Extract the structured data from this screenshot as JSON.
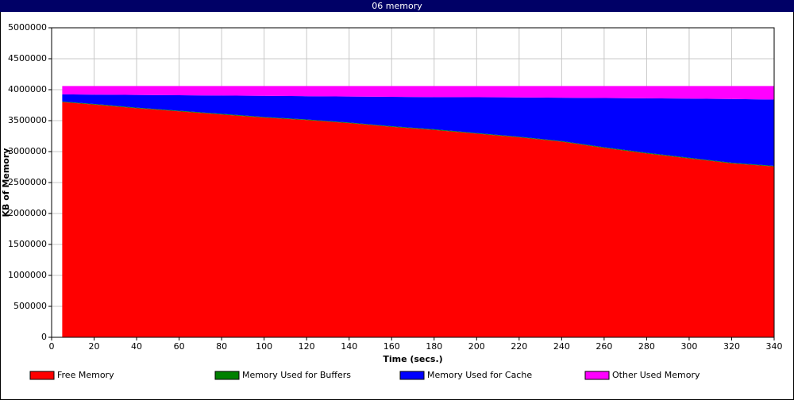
{
  "chart_data": {
    "type": "stacked_area",
    "title": "06 memory",
    "x_label": "Time (secs.)",
    "y_label": "KB of Memory",
    "x": [
      5,
      20,
      40,
      60,
      80,
      100,
      120,
      140,
      160,
      180,
      200,
      220,
      240,
      260,
      280,
      300,
      320,
      340
    ],
    "series": [
      {
        "name": "Free Memory",
        "color": "#ff0000",
        "values": [
          3800000,
          3760000,
          3700000,
          3650000,
          3600000,
          3550000,
          3510000,
          3460000,
          3400000,
          3350000,
          3290000,
          3230000,
          3160000,
          3060000,
          2970000,
          2890000,
          2810000,
          2760000
        ]
      },
      {
        "name": "Memory Used for Buffers",
        "color": "#008000",
        "values": [
          10000,
          10000,
          10000,
          10000,
          10000,
          10000,
          10000,
          10000,
          10000,
          10000,
          10000,
          10000,
          10000,
          10000,
          10000,
          10000,
          10000,
          10000
        ]
      },
      {
        "name": "Memory Used for Cache",
        "color": "#0000ff",
        "values": [
          115000,
          150000,
          205000,
          250000,
          295000,
          340000,
          375000,
          420000,
          475000,
          520000,
          578000,
          635000,
          700000,
          795000,
          880000,
          955000,
          1030000,
          1070000
        ]
      },
      {
        "name": "Other Used Memory",
        "color": "#ff00ff",
        "values": [
          135000,
          140000,
          145000,
          150000,
          155000,
          160000,
          165000,
          170000,
          175000,
          180000,
          182000,
          185000,
          190000,
          195000,
          200000,
          205000,
          210000,
          220000
        ]
      }
    ],
    "xlim": [
      0,
      340
    ],
    "xticks": [
      0,
      20,
      40,
      60,
      80,
      100,
      120,
      140,
      160,
      180,
      200,
      220,
      240,
      260,
      280,
      300,
      320,
      340
    ],
    "ylim": [
      0,
      5000000
    ],
    "yticks": [
      0,
      500000,
      1000000,
      1500000,
      2000000,
      2500000,
      3000000,
      3500000,
      4000000,
      4500000,
      5000000
    ],
    "grid": true,
    "legend": "bottom"
  }
}
